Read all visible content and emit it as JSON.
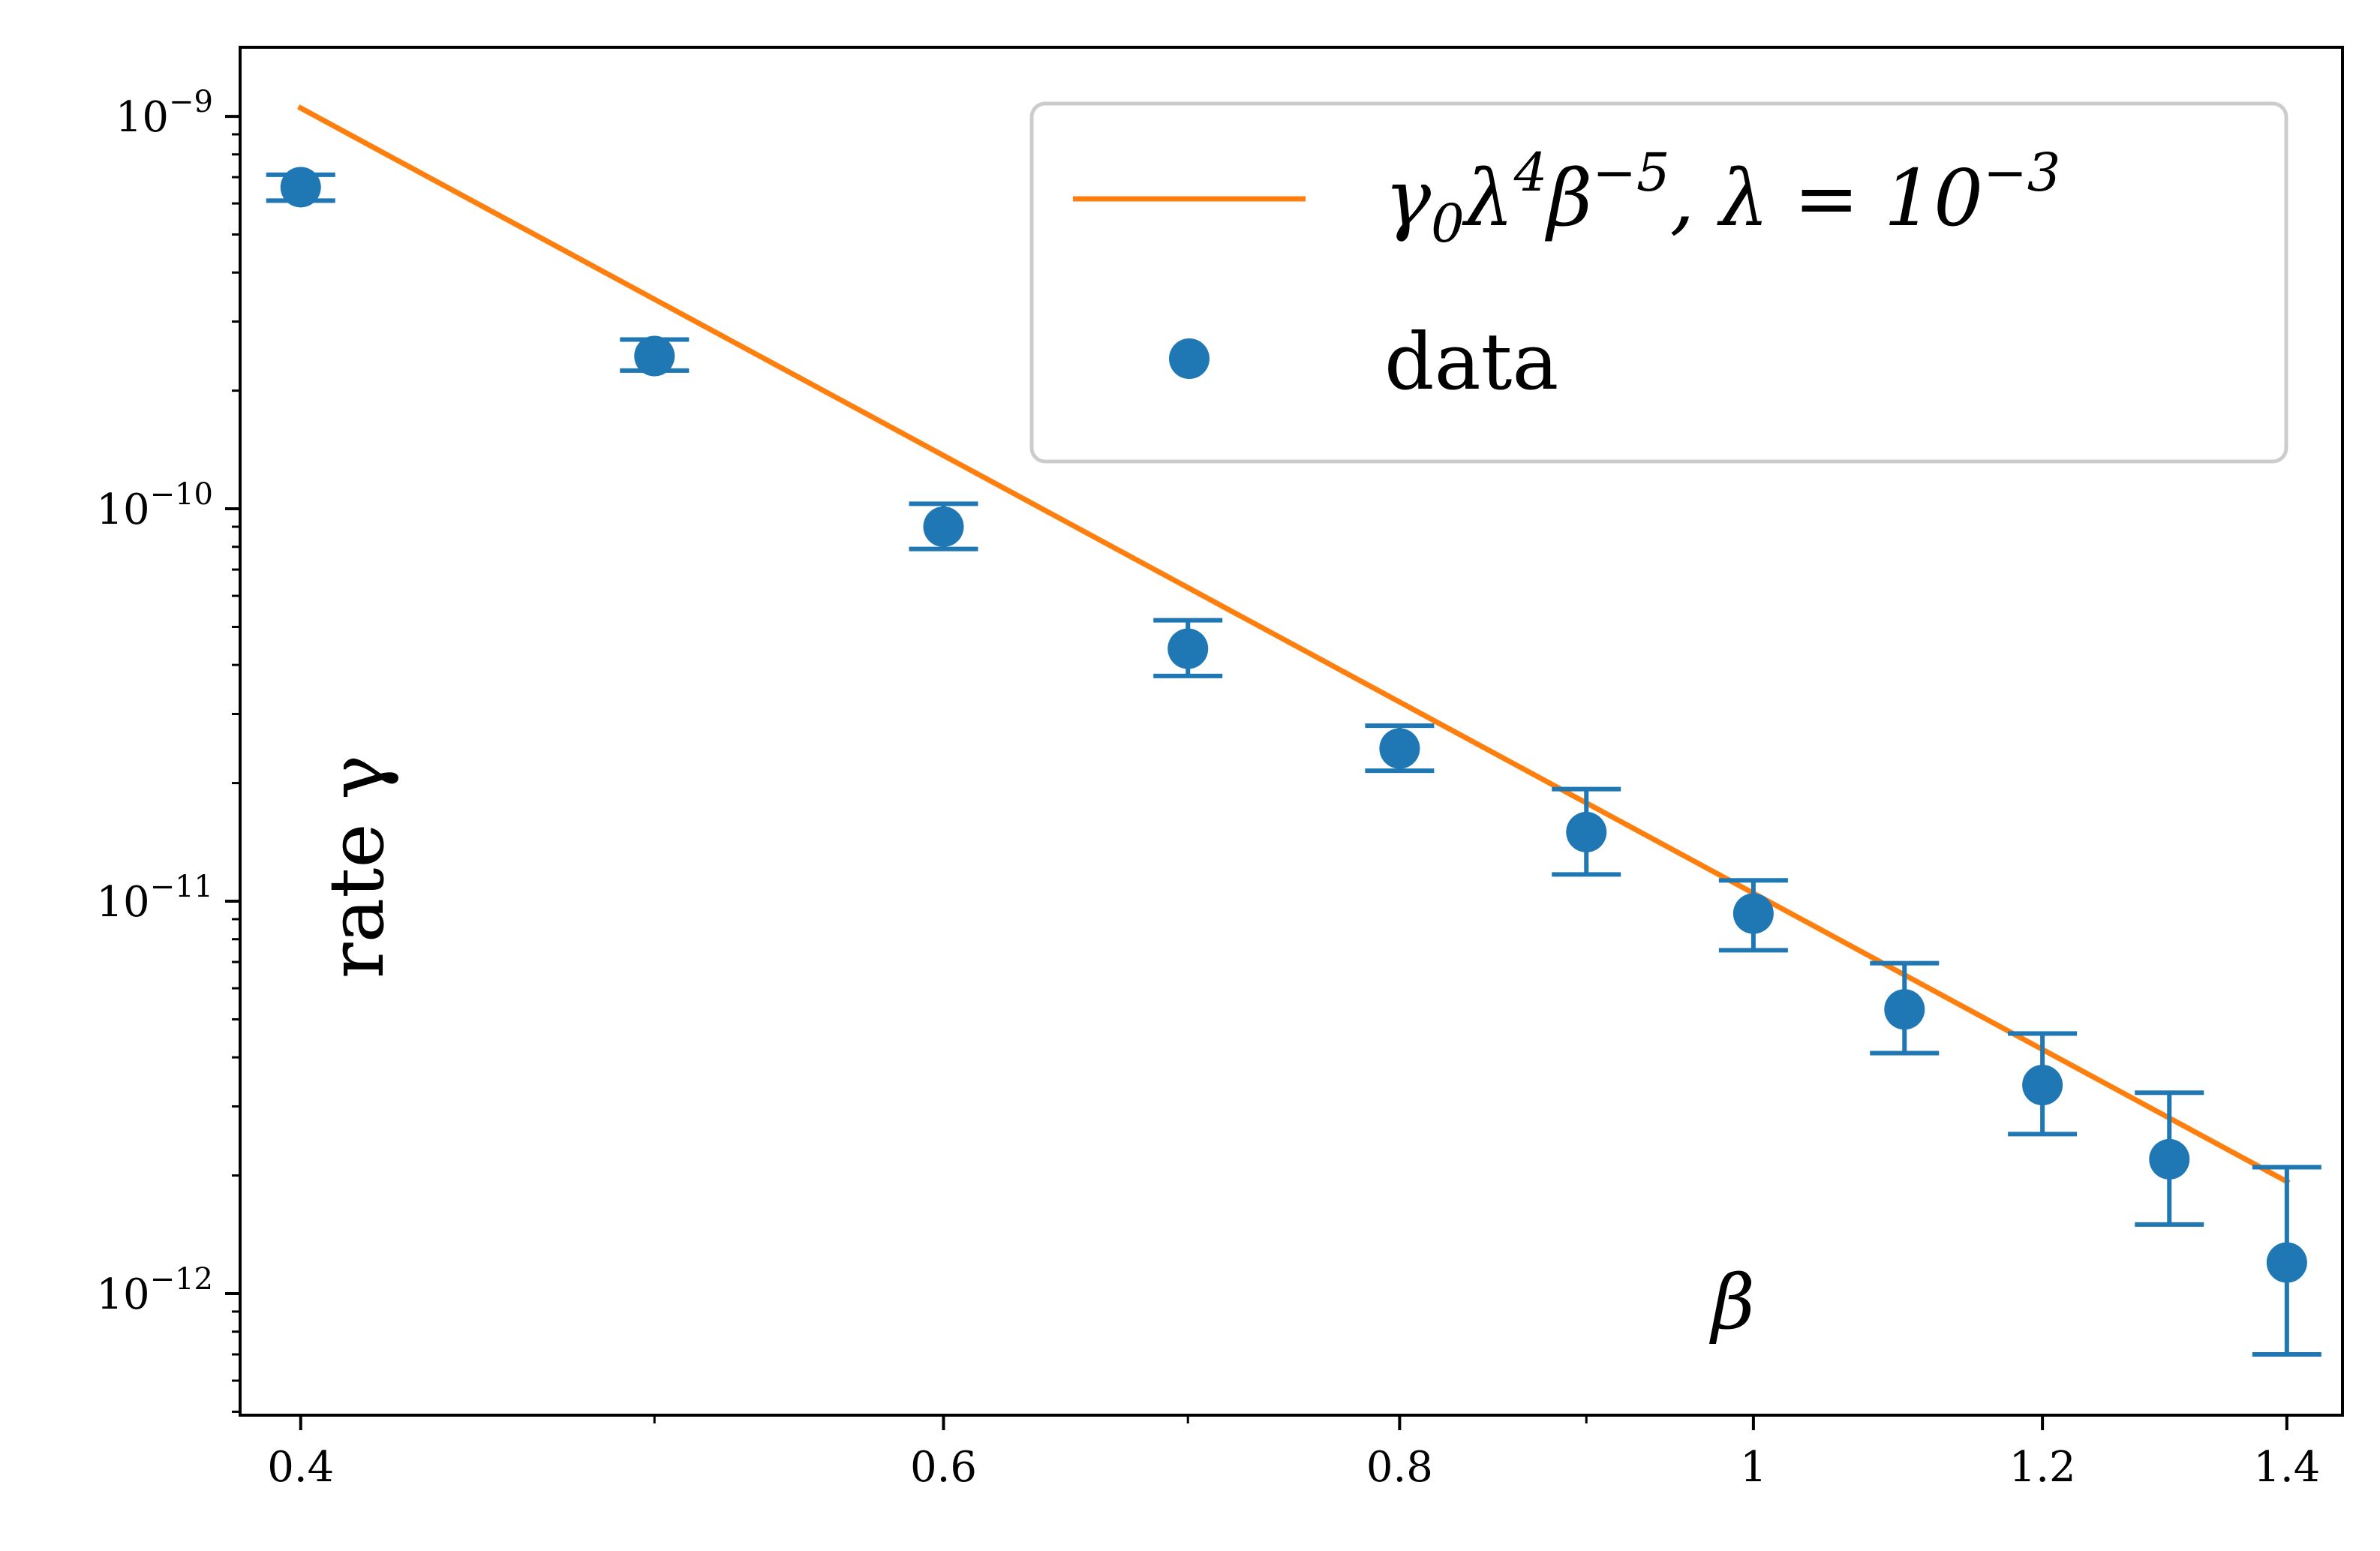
{
  "chart_data": {
    "type": "scatter",
    "xlabel": "β",
    "ylabel": "rate γ",
    "x_scale": "log",
    "y_scale": "log",
    "xlim": [
      0.385,
      1.45
    ],
    "ylim": [
      4.9e-13,
      1.5e-09
    ],
    "grid": false,
    "legend_position": "top-right",
    "x_ticks": [
      {
        "value": 0.4,
        "label": "0.4"
      },
      {
        "value": 0.6,
        "label": "0.6"
      },
      {
        "value": 0.8,
        "label": "0.8"
      },
      {
        "value": 1.0,
        "label": "1"
      },
      {
        "value": 1.2,
        "label": "1.2"
      },
      {
        "value": 1.4,
        "label": "1.4"
      }
    ],
    "y_ticks": [
      {
        "value": 1e-09,
        "base": "10",
        "exp": "−9"
      },
      {
        "value": 1e-10,
        "base": "10",
        "exp": "−10"
      },
      {
        "value": 1e-11,
        "base": "10",
        "exp": "−11"
      },
      {
        "value": 1e-12,
        "base": "10",
        "exp": "−12"
      }
    ],
    "series": [
      {
        "name": "γ0λ4β−5, λ = 10−3",
        "legend": {
          "pre": "γ",
          "sub": "0",
          "mid": "λ",
          "sup1": "4",
          "mid2": "β",
          "sup2": "−5",
          "post": ", λ = 10",
          "sup3": "−3"
        },
        "kind": "line",
        "color": "#ff7f0e",
        "x": [
          0.4,
          1.4
        ],
        "y": [
          1.05e-09,
          1.93e-12
        ]
      },
      {
        "name": "data",
        "kind": "errorbar",
        "color": "#1f77b4",
        "x": [
          0.4,
          0.5,
          0.6,
          0.7,
          0.8,
          0.9,
          1.0,
          1.1,
          1.2,
          1.3,
          1.4
        ],
        "y": [
          6.6e-10,
          2.45e-10,
          9e-11,
          4.4e-11,
          2.45e-11,
          1.5e-11,
          9.3e-12,
          5.3e-12,
          3.4e-12,
          2.2e-12,
          1.2e-12
        ],
        "yerr_low": [
          6.1e-10,
          2.25e-10,
          7.9e-11,
          3.75e-11,
          2.15e-11,
          1.17e-11,
          7.5e-12,
          4.1e-12,
          2.55e-12,
          1.5e-12,
          7e-13
        ],
        "yerr_high": [
          7.1e-10,
          2.7e-10,
          1.03e-10,
          5.2e-11,
          2.8e-11,
          1.93e-11,
          1.13e-11,
          6.95e-12,
          4.6e-12,
          3.25e-12,
          2.1e-12
        ]
      }
    ]
  }
}
